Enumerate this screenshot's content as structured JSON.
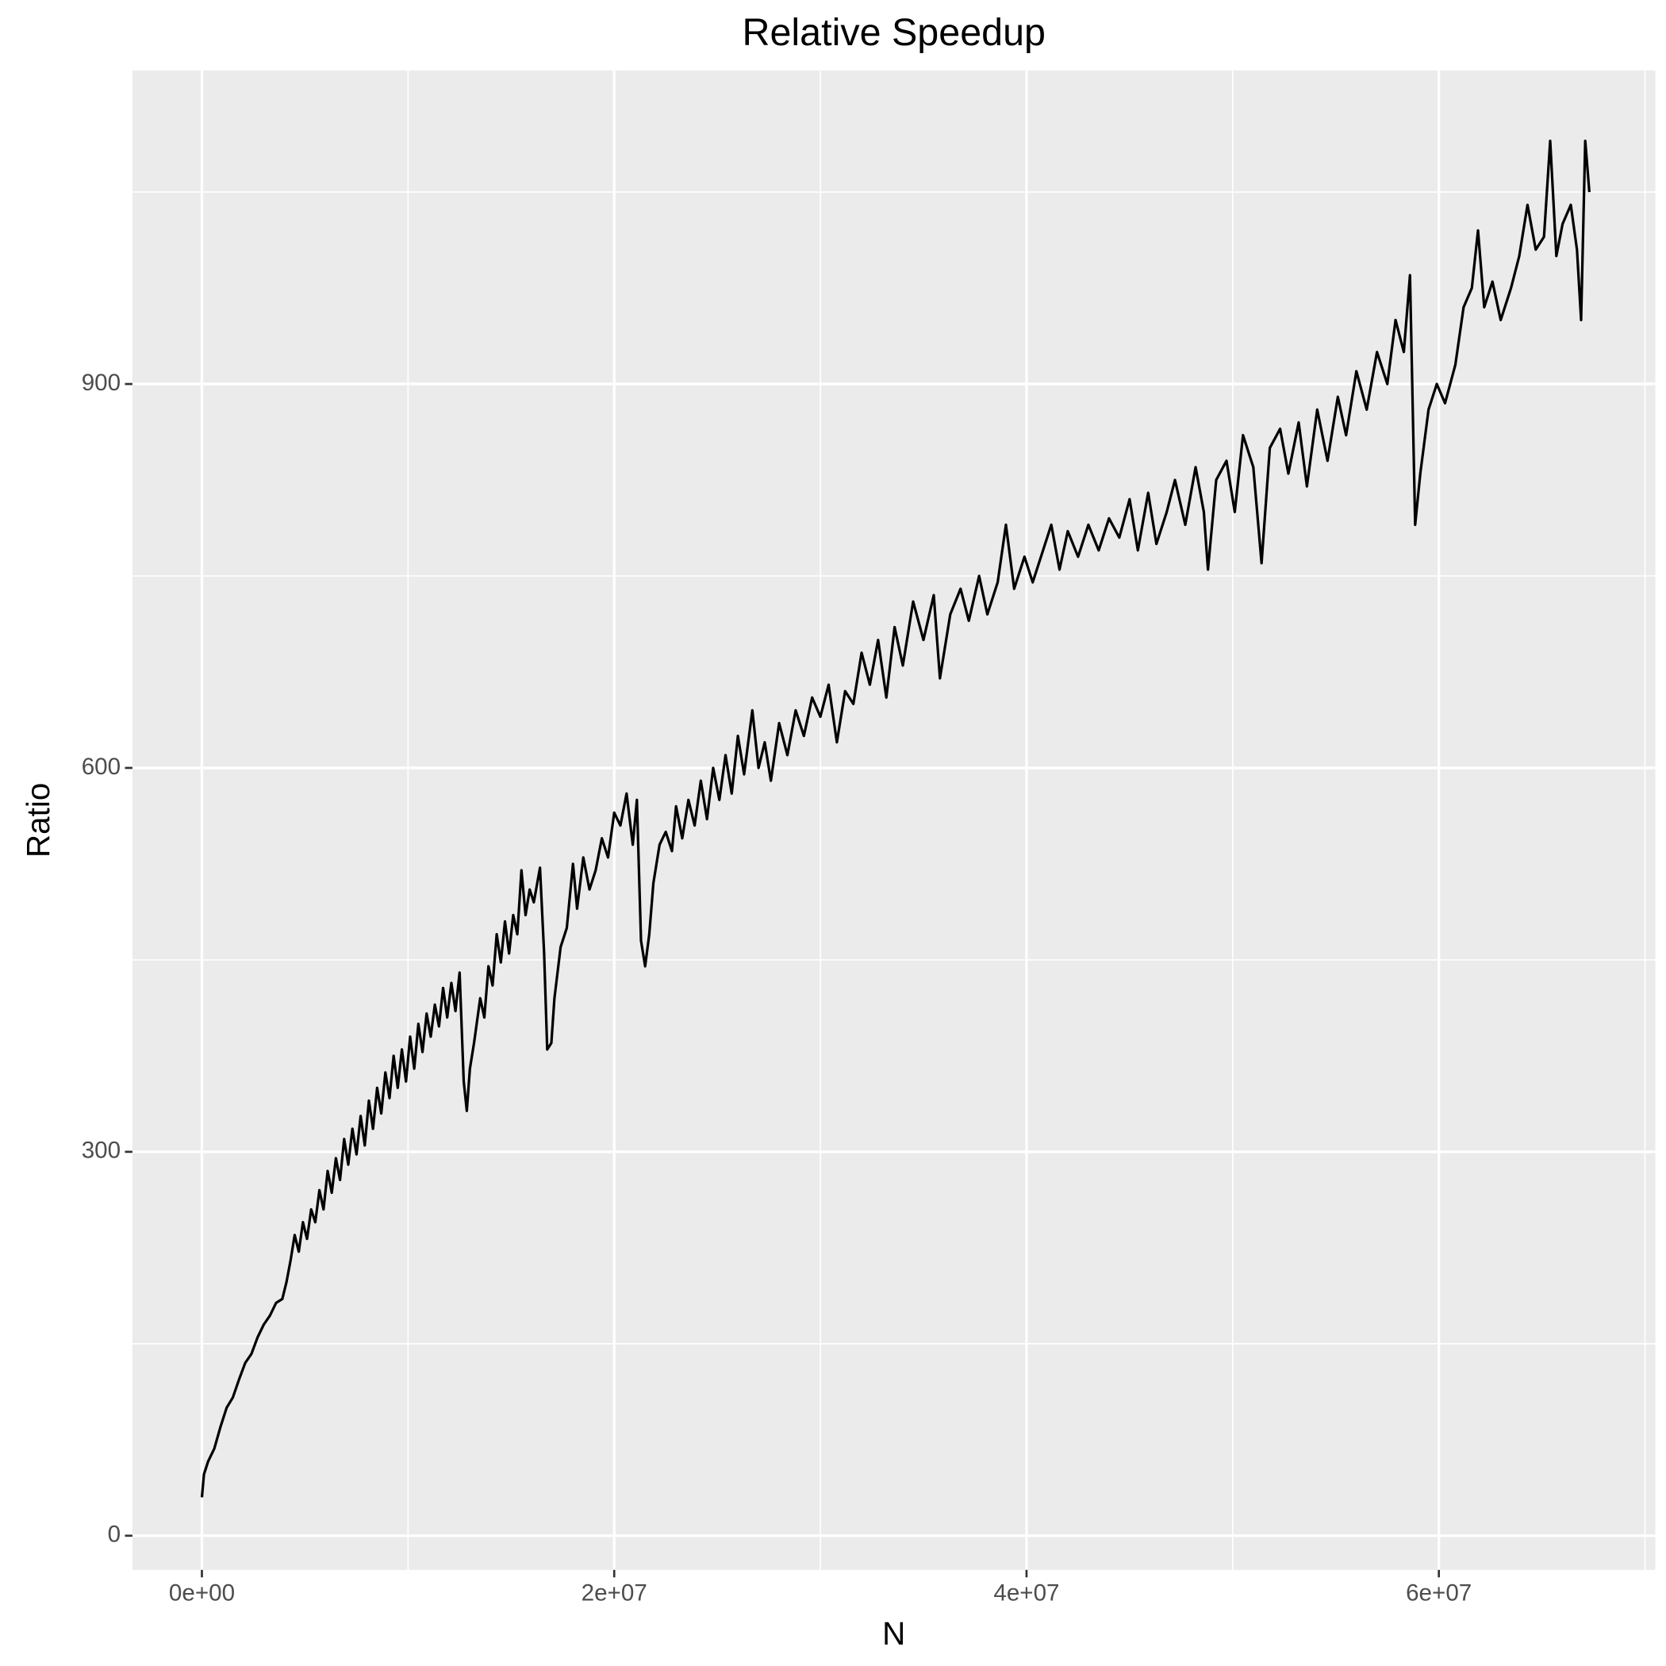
{
  "chart_data": {
    "type": "line",
    "title": "Relative Speedup",
    "x_label": "N",
    "y_label": "Ratio",
    "color": "#000000",
    "grid": true,
    "xlim": [
      -3370000,
      70500000
    ],
    "ylim": [
      -26.7,
      1145
    ],
    "xticks": [
      {
        "value": 0,
        "label": "0e+00"
      },
      {
        "value": 20000000,
        "label": "2e+07"
      },
      {
        "value": 40000000,
        "label": "4e+07"
      },
      {
        "value": 60000000,
        "label": "6e+07"
      }
    ],
    "xminorticks": [
      10000000,
      30000000,
      50000000,
      70000000
    ],
    "yticks": [
      0,
      300,
      600,
      900
    ],
    "yminorticks": [
      150,
      450,
      750,
      1050
    ],
    "x": [
      0,
      100000,
      300000,
      600000,
      900000,
      1200000,
      1500000,
      1800000,
      2100000,
      2400000,
      2700000,
      3000000,
      3300000,
      3600000,
      3900000,
      4100000,
      4300000,
      4500000,
      4700000,
      4900000,
      5100000,
      5300000,
      5500000,
      5700000,
      5900000,
      6100000,
      6300000,
      6500000,
      6700000,
      6900000,
      7100000,
      7300000,
      7500000,
      7700000,
      7900000,
      8100000,
      8300000,
      8500000,
      8700000,
      8900000,
      9100000,
      9300000,
      9500000,
      9700000,
      9900000,
      10100000,
      10300000,
      10500000,
      10700000,
      10900000,
      11100000,
      11300000,
      11500000,
      11700000,
      11900000,
      12100000,
      12300000,
      12500000,
      12700000,
      12850000,
      13000000,
      13200000,
      13500000,
      13700000,
      13900000,
      14100000,
      14300000,
      14500000,
      14700000,
      14900000,
      15100000,
      15300000,
      15500000,
      15700000,
      15900000,
      16100000,
      16400000,
      16600000,
      16750000,
      16950000,
      17100000,
      17400000,
      17700000,
      18000000,
      18200000,
      18500000,
      18800000,
      19100000,
      19400000,
      19700000,
      20000000,
      20300000,
      20600000,
      20900000,
      21100000,
      21300000,
      21500000,
      21700000,
      21900000,
      22200000,
      22500000,
      22800000,
      23000000,
      23300000,
      23600000,
      23900000,
      24200000,
      24500000,
      24800000,
      25100000,
      25400000,
      25700000,
      26000000,
      26300000,
      26700000,
      27000000,
      27300000,
      27600000,
      28000000,
      28400000,
      28800000,
      29200000,
      29600000,
      30000000,
      30400000,
      30800000,
      31200000,
      31600000,
      32000000,
      32400000,
      32800000,
      33200000,
      33600000,
      34000000,
      34500000,
      35000000,
      35500000,
      35800000,
      36300000,
      36800000,
      37200000,
      37700000,
      38100000,
      38600000,
      39000000,
      39400000,
      39900000,
      40300000,
      40800000,
      41200000,
      41600000,
      42000000,
      42500000,
      43000000,
      43500000,
      44000000,
      44500000,
      45000000,
      45400000,
      45900000,
      46300000,
      46800000,
      47200000,
      47700000,
      48200000,
      48600000,
      48800000,
      49200000,
      49700000,
      50100000,
      50500000,
      51000000,
      51400000,
      51800000,
      52300000,
      52700000,
      53200000,
      53600000,
      54100000,
      54600000,
      55100000,
      55500000,
      56000000,
      56500000,
      57000000,
      57500000,
      57900000,
      58300000,
      58600000,
      58850000,
      59100000,
      59500000,
      59900000,
      60300000,
      60800000,
      61200000,
      61600000,
      61900000,
      62200000,
      62600000,
      63000000,
      63500000,
      63900000,
      64300000,
      64700000,
      65100000,
      65400000,
      65700000,
      66000000,
      66400000,
      66700000,
      66900000,
      67100000,
      67300000
    ],
    "values": [
      30,
      48,
      58,
      68,
      85,
      100,
      108,
      122,
      135,
      142,
      155,
      165,
      172,
      182,
      185,
      198,
      215,
      235,
      222,
      245,
      232,
      255,
      245,
      270,
      255,
      285,
      268,
      295,
      278,
      310,
      290,
      318,
      298,
      328,
      305,
      340,
      318,
      350,
      330,
      362,
      342,
      375,
      350,
      380,
      355,
      390,
      365,
      400,
      378,
      408,
      390,
      415,
      398,
      428,
      405,
      432,
      410,
      440,
      355,
      332,
      365,
      385,
      420,
      405,
      445,
      430,
      470,
      448,
      480,
      455,
      485,
      470,
      520,
      485,
      505,
      495,
      522,
      455,
      380,
      385,
      420,
      460,
      475,
      525,
      490,
      530,
      505,
      520,
      545,
      530,
      565,
      555,
      580,
      540,
      575,
      465,
      445,
      470,
      510,
      540,
      550,
      535,
      570,
      545,
      575,
      555,
      590,
      560,
      600,
      575,
      610,
      580,
      625,
      595,
      645,
      600,
      620,
      590,
      635,
      610,
      645,
      625,
      655,
      640,
      665,
      620,
      660,
      650,
      690,
      665,
      700,
      655,
      710,
      680,
      730,
      700,
      735,
      670,
      720,
      740,
      715,
      750,
      720,
      745,
      790,
      740,
      765,
      745,
      770,
      790,
      755,
      785,
      765,
      790,
      770,
      795,
      780,
      810,
      770,
      815,
      775,
      800,
      825,
      790,
      835,
      800,
      755,
      825,
      840,
      800,
      860,
      835,
      760,
      850,
      865,
      830,
      870,
      820,
      880,
      840,
      890,
      860,
      910,
      880,
      925,
      900,
      950,
      925,
      985,
      790,
      830,
      880,
      900,
      885,
      915,
      960,
      975,
      1020,
      960,
      980,
      950,
      975,
      1000,
      1040,
      1005,
      1015,
      1090,
      1000,
      1025,
      1040,
      1005,
      950,
      1090,
      1050
    ]
  }
}
